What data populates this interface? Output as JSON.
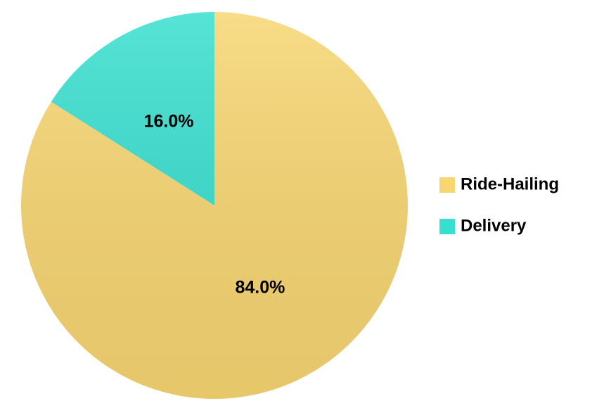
{
  "chart_data": {
    "type": "pie",
    "categories": [
      "Ride-Hailing",
      "Delivery"
    ],
    "values": [
      84.0,
      16.0
    ],
    "value_labels": [
      "84.0%",
      "16.0%"
    ],
    "colors": [
      "#f8d672",
      "#38dfcf"
    ],
    "legend": "right"
  }
}
